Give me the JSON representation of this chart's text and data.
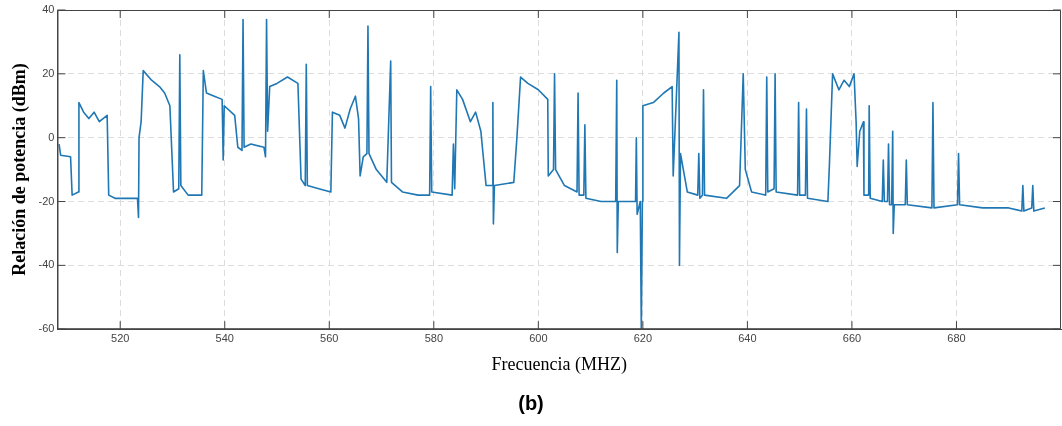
{
  "chart_data": {
    "type": "line",
    "xlabel": "Frecuencia (MHZ)",
    "ylabel": "Relación de potencia (dBm)",
    "annotations": [
      "(b)"
    ],
    "xlim": [
      508,
      700
    ],
    "xticks": [
      520,
      540,
      560,
      580,
      600,
      620,
      640,
      660,
      680
    ],
    "ylim": [
      -60,
      40
    ],
    "yticks": [
      -60,
      -40,
      -20,
      0,
      20,
      40
    ],
    "grid": true,
    "legend": false,
    "marker": "none",
    "line_style": "solid",
    "series": [
      {
        "color": "#1f77b4",
        "x": [
          508.3,
          508.6,
          510.5,
          510.8,
          512,
          512.1,
          513,
          514,
          515,
          516,
          517.5,
          517.8,
          519,
          521,
          523.3,
          523.5,
          523.6,
          524,
          524.4,
          526,
          527.5,
          528.5,
          529.5,
          530.2,
          531.2,
          531.4,
          531.6,
          533,
          535.6,
          535.9,
          536.5,
          538,
          539.5,
          539.7,
          539.9,
          541.9,
          542.5,
          543.3,
          543.5,
          543.7,
          545,
          547.5,
          547.8,
          548,
          548.2,
          548.6,
          550,
          552,
          554,
          554.6,
          555.4,
          555.6,
          555.8,
          558,
          560.3,
          560.6,
          562,
          563,
          564,
          565,
          565.6,
          565.9,
          566.5,
          567.2,
          567.4,
          567.6,
          569,
          571,
          571.75,
          571.9,
          574,
          577,
          579.2,
          579.4,
          579.6,
          583.5,
          583.75,
          584,
          584.4,
          585.5,
          587,
          588,
          589,
          590,
          591.2,
          591.3,
          591.4,
          591.6,
          595.3,
          595.9,
          596.6,
          598,
          600,
          601.8,
          601.9,
          602.9,
          603.1,
          603.3,
          605,
          607.4,
          607.6,
          607.8,
          608.7,
          608.9,
          609.1,
          612,
          614.8,
          615,
          615.1,
          615.3,
          618.6,
          618.75,
          618.9,
          619.5,
          619.7,
          619.9,
          620,
          622,
          624,
          625.6,
          625.8,
          626.9,
          627,
          627.2,
          628.5,
          630.5,
          630.7,
          630.9,
          631.4,
          631.6,
          631.8,
          636,
          638.5,
          639.2,
          639.6,
          640.8,
          643.5,
          643.7,
          643.9,
          645.1,
          645.3,
          645.5,
          649.6,
          649.8,
          650,
          651.1,
          651.3,
          651.5,
          655.4,
          655.7,
          656.3,
          657.5,
          658.5,
          659.5,
          660.4,
          660.8,
          661,
          661.5,
          662.2,
          662.3,
          663.2,
          663.3,
          663.5,
          665.8,
          666,
          666.2,
          666.8,
          667,
          667.2,
          667.6,
          667.8,
          667.9,
          668.1,
          670.2,
          670.4,
          670.6,
          675.3,
          675.5,
          675.7,
          680.2,
          680.4,
          680.6,
          685,
          690,
          692.5,
          692.7,
          692.9,
          694.4,
          694.6,
          694.8,
          696.9
        ],
        "values": [
          -2,
          -5.5,
          -6,
          -18,
          -17,
          11,
          8,
          6,
          8,
          5,
          7,
          -18,
          -19,
          -19,
          -19,
          -25,
          0,
          5,
          21,
          18,
          16,
          14,
          10,
          -17,
          -16,
          26,
          -15,
          -18,
          -18,
          21,
          14,
          13,
          12,
          -7,
          10,
          7,
          -3,
          -4,
          37,
          -3,
          -2,
          -3,
          -6,
          37,
          2,
          16,
          17,
          19,
          17,
          -13,
          -15,
          23,
          -15,
          -16,
          -17,
          8,
          7,
          3,
          9,
          13,
          6,
          -12,
          -6,
          -5,
          35,
          -5,
          -10,
          -14,
          24,
          -14,
          -17,
          -18,
          -18,
          16,
          -17,
          -18,
          -2,
          -16,
          15,
          12,
          5,
          8,
          2,
          -15,
          -15,
          11,
          -27,
          -15,
          -14,
          0,
          19,
          17,
          15,
          12,
          -12,
          -10,
          20,
          -10,
          -15,
          -17,
          14,
          -18,
          -18,
          4,
          -19,
          -20,
          -20,
          18,
          -36,
          -20,
          -20,
          0,
          -24,
          -20,
          -60,
          -20,
          10,
          11,
          14,
          16,
          -12,
          33,
          -40,
          -5,
          -17,
          -18,
          -5,
          -19,
          -18,
          15,
          -18,
          -19,
          -15,
          20,
          -10,
          -17,
          -18,
          19,
          -17,
          -16,
          20,
          -17,
          -18,
          11,
          -18,
          -18,
          9,
          -19,
          -20,
          -8,
          20,
          15,
          18,
          16,
          20,
          5,
          -9,
          2,
          5,
          -18,
          -18,
          10,
          -19,
          -20,
          -7,
          -20,
          -20,
          -2,
          -21,
          -21,
          2,
          -30,
          -21,
          -21,
          -7,
          -21,
          -22,
          11,
          -22,
          -21,
          -5,
          -21,
          -22,
          -22,
          -23,
          -15,
          -23,
          -22,
          -15,
          -23,
          -22
        ]
      }
    ]
  }
}
